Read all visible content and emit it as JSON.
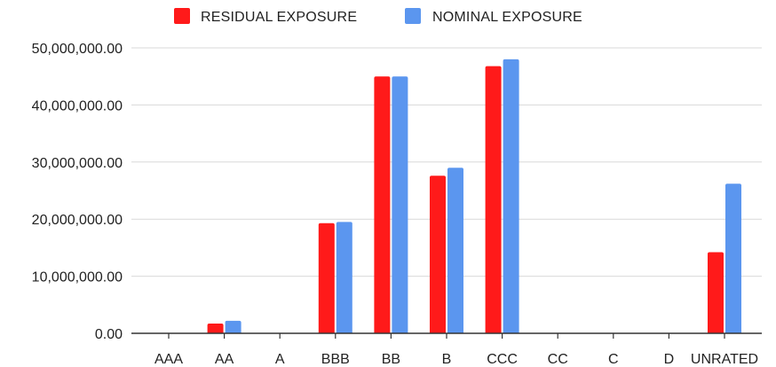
{
  "chart_data": {
    "type": "bar",
    "categories": [
      "AAA",
      "AA",
      "A",
      "BBB",
      "BB",
      "B",
      "CCC",
      "CC",
      "C",
      "D",
      "UNRATED"
    ],
    "series": [
      {
        "name": "RESIDUAL EXPOSURE",
        "color": "#ff1a1a",
        "values": [
          0,
          1700000,
          0,
          19300000,
          45000000,
          27600000,
          46800000,
          0,
          0,
          0,
          14200000
        ]
      },
      {
        "name": "NOMINAL EXPOSURE",
        "color": "#5b96ef",
        "values": [
          0,
          2200000,
          0,
          19500000,
          45000000,
          29000000,
          48000000,
          0,
          0,
          0,
          26200000
        ]
      }
    ],
    "yticks": [
      "0.00",
      "10,000,000.00",
      "20,000,000.00",
      "30,000,000.00",
      "40,000,000.00",
      "50,000,000.00"
    ],
    "ylim": [
      0,
      50000000
    ],
    "grid": true,
    "legend_position": "top-center",
    "title": "",
    "xlabel": "",
    "ylabel": ""
  }
}
